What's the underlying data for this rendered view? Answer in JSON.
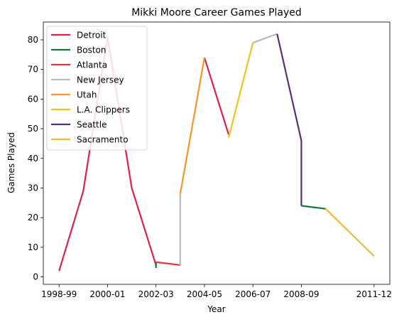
{
  "chart_data": {
    "type": "line",
    "title": "Mikki Moore Career Games Played",
    "xlabel": "Year",
    "ylabel": "Games Played",
    "x_tick_labels": [
      "1998-99",
      "2000-01",
      "2002-03",
      "2004-05",
      "2006-07",
      "2008-09",
      "2011-12"
    ],
    "y_ticks": [
      0,
      10,
      20,
      30,
      40,
      50,
      60,
      70,
      80
    ],
    "ylim": [
      -2.5,
      86
    ],
    "grid": false,
    "legend_position": "top-left",
    "series": [
      {
        "name": "Detroit",
        "color": "#e0204f",
        "segments": [
          {
            "x": [
              "1998-99",
              "1999-00",
              "2000-01",
              "2001-02",
              "2002-03"
            ],
            "y": [
              2,
              29,
              81,
              30,
              4
            ]
          },
          {
            "x": [
              "2004-05",
              "2005-06"
            ],
            "y": [
              74,
              48
            ]
          }
        ]
      },
      {
        "name": "Boston",
        "color": "#0e7a3c",
        "segments": [
          {
            "x": [
              "2002-03",
              "2002-03"
            ],
            "y": [
              3,
              5
            ]
          },
          {
            "x": [
              "2008-09",
              "2009-10"
            ],
            "y": [
              24,
              23
            ]
          }
        ]
      },
      {
        "name": "Atlanta",
        "color": "#e03a3e",
        "segments": [
          {
            "x": [
              "2002-03",
              "2003-04"
            ],
            "y": [
              5,
              4
            ]
          }
        ]
      },
      {
        "name": "New Jersey",
        "color": "#bbbbbb",
        "segments": [
          {
            "x": [
              "2003-04",
              "2003-04"
            ],
            "y": [
              4,
              28
            ]
          },
          {
            "x": [
              "2006-07",
              "2007-08"
            ],
            "y": [
              79,
              82
            ]
          }
        ]
      },
      {
        "name": "Utah",
        "color": "#f5962a",
        "segments": [
          {
            "x": [
              "2003-04",
              "2004-05"
            ],
            "y": [
              28,
              74
            ]
          }
        ]
      },
      {
        "name": "L.A. Clippers",
        "color": "#f5c21b",
        "segments": [
          {
            "x": [
              "2005-06",
              "2006-07"
            ],
            "y": [
              47,
              79
            ]
          }
        ]
      },
      {
        "name": "Seattle",
        "color": "#5a2d82",
        "segments": [
          {
            "x": [
              "2007-08",
              "2008-09",
              "2008-09"
            ],
            "y": [
              82,
              46,
              24
            ]
          }
        ]
      },
      {
        "name": "Sacramento",
        "color": "#f5b82e",
        "segments": [
          {
            "x": [
              "2009-10",
              "2011-12"
            ],
            "y": [
              23,
              7
            ]
          }
        ]
      }
    ]
  }
}
